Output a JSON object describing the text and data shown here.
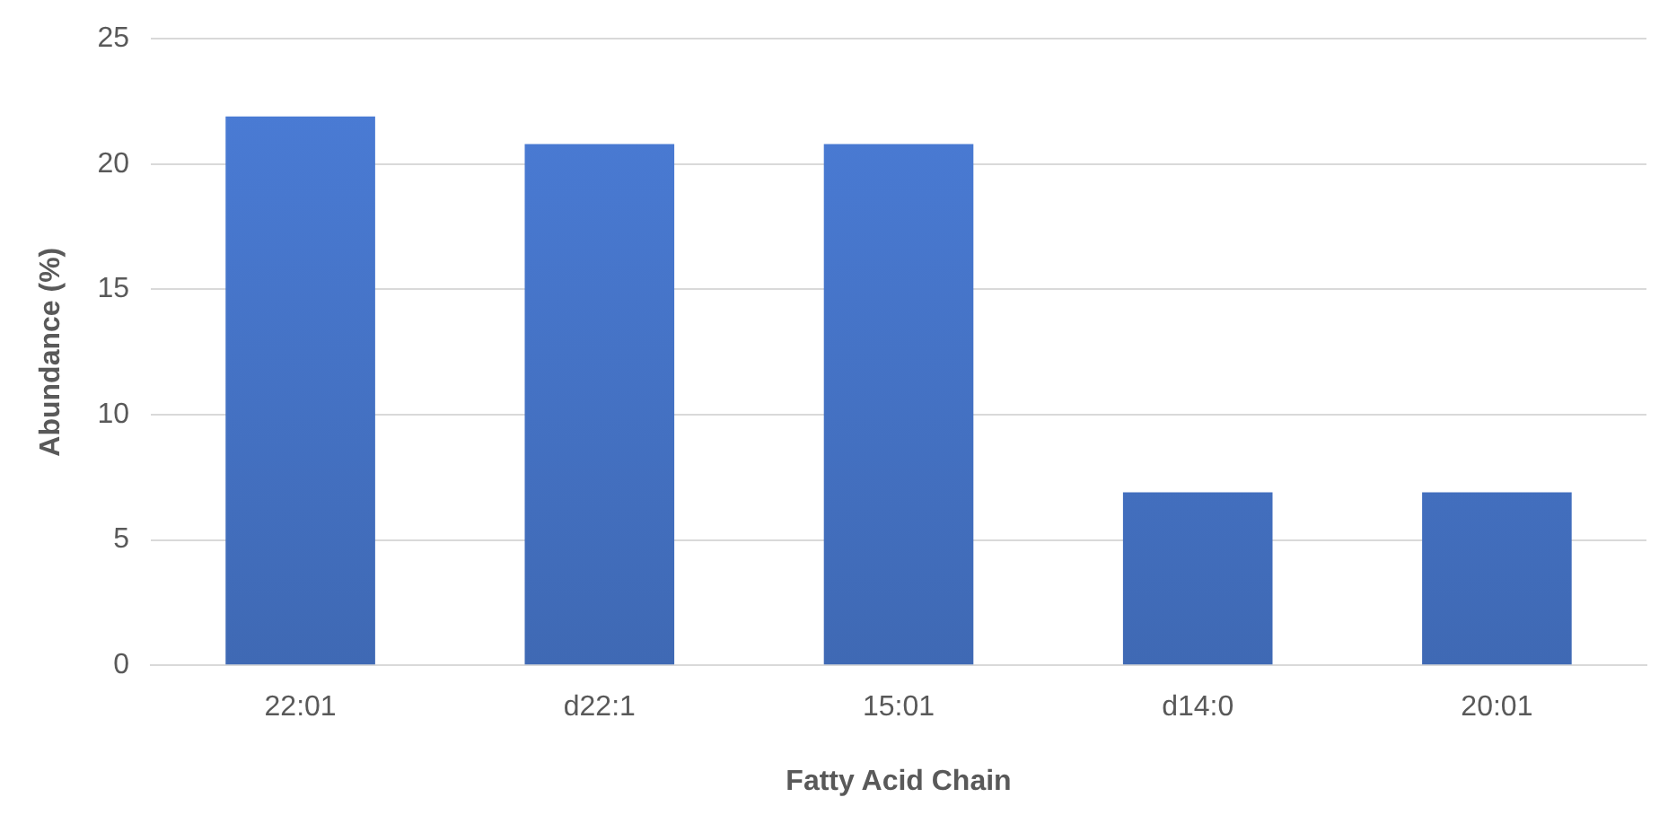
{
  "chart_data": {
    "type": "bar",
    "xlabel": "Fatty Acid Chain",
    "ylabel": "Abundance (%)",
    "categories": [
      "22:01",
      "d22:1",
      "15:01",
      "d14:0",
      "20:01"
    ],
    "values": [
      21.9,
      20.8,
      20.8,
      6.9,
      6.9
    ],
    "color": "#4472c4",
    "ylim": [
      0,
      25
    ],
    "yticks": [
      0,
      5,
      10,
      15,
      20,
      25
    ],
    "grid": "y",
    "legend": false
  }
}
